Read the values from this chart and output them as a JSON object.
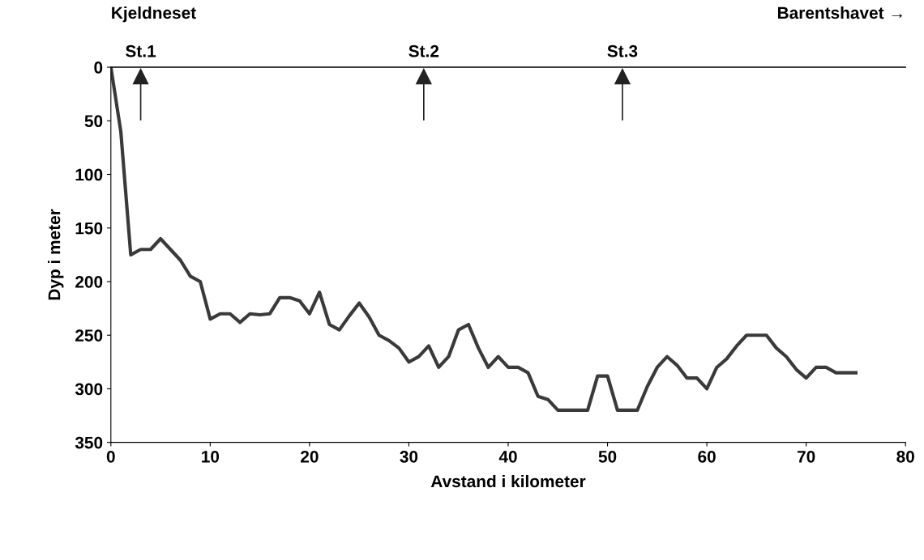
{
  "chart_data": {
    "type": "line",
    "xlabel": "Avstand i kilometer",
    "ylabel": "Dyp i meter",
    "x": [
      0,
      1,
      2,
      3,
      4,
      5,
      6,
      7,
      8,
      9,
      10,
      11,
      12,
      13,
      14,
      15,
      16,
      17,
      18,
      19,
      20,
      21,
      22,
      23,
      24,
      25,
      26,
      27,
      28,
      29,
      30,
      31,
      32,
      33,
      34,
      35,
      36,
      37,
      38,
      39,
      40,
      41,
      42,
      43,
      44,
      45,
      46,
      47,
      48,
      49,
      50,
      51,
      52,
      53,
      54,
      55,
      56,
      57,
      58,
      59,
      60,
      61,
      62,
      63,
      64,
      65,
      66,
      67,
      68,
      69,
      70,
      71,
      72,
      73,
      74,
      75
    ],
    "series": [
      {
        "color": "#3a3a3a",
        "values": [
          0,
          60,
          175,
          170,
          170,
          160,
          170,
          180,
          195,
          200,
          235,
          230,
          230,
          238,
          230,
          231,
          230,
          215,
          215,
          218,
          230,
          210,
          240,
          245,
          232,
          220,
          233,
          250,
          255,
          262,
          275,
          270,
          260,
          280,
          270,
          245,
          240,
          262,
          280,
          270,
          280,
          280,
          285,
          307,
          310,
          320,
          320,
          320,
          320,
          288,
          288,
          320,
          320,
          320,
          298,
          280,
          270,
          278,
          290,
          290,
          300,
          280,
          272,
          260,
          250,
          250,
          250,
          262,
          270,
          282,
          290,
          280,
          280,
          285,
          285,
          285
        ]
      }
    ],
    "xlim": [
      0,
      80
    ],
    "xticks": [
      0,
      10,
      20,
      30,
      40,
      50,
      60,
      70,
      80
    ],
    "ylim": [
      350,
      0
    ],
    "yticks": [
      0,
      50,
      100,
      150,
      200,
      250,
      300,
      350
    ],
    "grid": false,
    "legend": false,
    "marker": "none",
    "line_style": "solid",
    "annotations": [
      "Kjeldneset",
      "Barentshavet →"
    ],
    "ref_lines": [
      {
        "axis": "x",
        "value": 3,
        "label": "St.1"
      },
      {
        "axis": "x",
        "value": 31.5,
        "label": "St.2"
      },
      {
        "axis": "x",
        "value": 51.5,
        "label": "St.3"
      }
    ]
  }
}
